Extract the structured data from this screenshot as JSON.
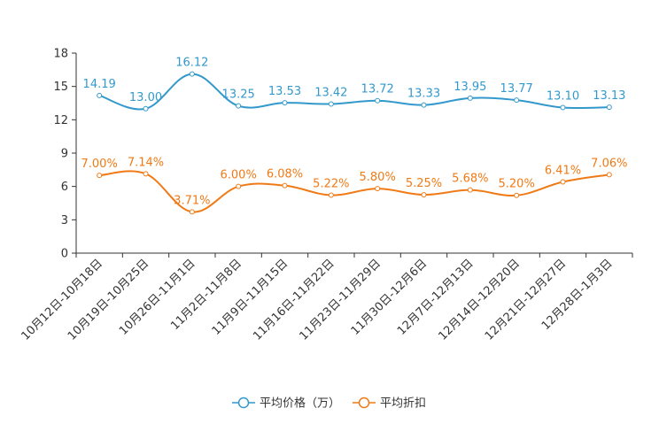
{
  "chart_data": {
    "type": "line",
    "title": "",
    "xlabel": "",
    "ylabel": "",
    "ylim": [
      0,
      18
    ],
    "yticks": [
      0,
      3,
      6,
      9,
      12,
      15,
      18
    ],
    "categories": [
      "10月12日-10月18日",
      "10月19日-10月25日",
      "10月26日-11月1日",
      "11月2日-11月8日",
      "11月9日-11月15日",
      "11月16日-11月22日",
      "11月23日-11月29日",
      "11月30日-12月6日",
      "12月7日-12月13日",
      "12月14日-12月20日",
      "12月21日-12月27日",
      "12月28日-1月3日"
    ],
    "series": [
      {
        "name": "平均价格（万）",
        "color": "#3399cc",
        "values": [
          14.19,
          13.0,
          16.12,
          13.25,
          13.53,
          13.42,
          13.72,
          13.33,
          13.95,
          13.77,
          13.1,
          13.13
        ],
        "labels": [
          "14.19",
          "13.00",
          "16.12",
          "13.25",
          "13.53",
          "13.42",
          "13.72",
          "13.33",
          "13.95",
          "13.77",
          "13.10",
          "13.13"
        ]
      },
      {
        "name": "平均折扣",
        "color": "#f07a16",
        "values": [
          7.0,
          7.14,
          3.71,
          6.0,
          6.08,
          5.22,
          5.8,
          5.25,
          5.68,
          5.2,
          6.41,
          7.06
        ],
        "labels": [
          "7.00%",
          "7.14%",
          "3.71%",
          "6.00%",
          "6.08%",
          "5.22%",
          "5.80%",
          "5.25%",
          "5.68%",
          "5.20%",
          "6.41%",
          "7.06%"
        ]
      }
    ],
    "grid": false,
    "legend": "bottom-center"
  }
}
